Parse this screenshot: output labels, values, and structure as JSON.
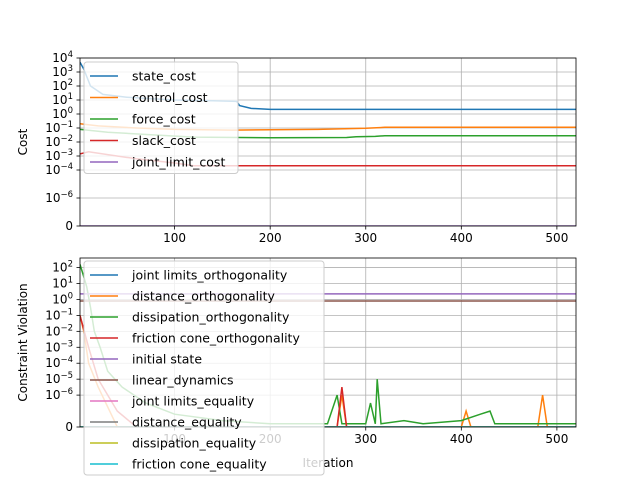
{
  "chart_data": [
    {
      "type": "line",
      "title": "",
      "xlabel": "",
      "ylabel": "Cost",
      "xlim": [
        1,
        520
      ],
      "ylim_log10": [
        -8,
        4
      ],
      "yscale": "symlog",
      "grid": true,
      "legend_position": "upper-left",
      "x_ticks": [
        100,
        200,
        300,
        400,
        500
      ],
      "x_tick_labels": [
        "100",
        "200",
        "300",
        "400",
        "500"
      ],
      "y_ticks": [
        4,
        3,
        2,
        1,
        0,
        -1,
        -2,
        -3,
        -4,
        -6,
        -8
      ],
      "y_tick_labels": [
        {
          "base": "10",
          "exp": "4"
        },
        {
          "base": "10",
          "exp": "3"
        },
        {
          "base": "10",
          "exp": "2"
        },
        {
          "base": "10",
          "exp": "1"
        },
        {
          "base": "10",
          "exp": "0"
        },
        {
          "base": "10",
          "exp": "−1"
        },
        {
          "base": "10",
          "exp": "−2"
        },
        {
          "base": "10",
          "exp": "−3"
        },
        {
          "base": "10",
          "exp": "−4"
        },
        {
          "base": "10",
          "exp": "−6"
        },
        {
          "base": "0",
          "exp": ""
        }
      ],
      "series": [
        {
          "name": "state_cost",
          "color": "#1f77b4",
          "points": [
            [
              1,
              3.7
            ],
            [
              5,
              3.2
            ],
            [
              12,
              2.0
            ],
            [
              25,
              1.4
            ],
            [
              50,
              1.2
            ],
            [
              100,
              1.0
            ],
            [
              140,
              0.95
            ],
            [
              165,
              0.9
            ],
            [
              168,
              0.6
            ],
            [
              180,
              0.4
            ],
            [
              200,
              0.33
            ],
            [
              300,
              0.33
            ],
            [
              520,
              0.33
            ]
          ]
        },
        {
          "name": "control_cost",
          "color": "#ff7f0e",
          "points": [
            [
              1,
              -0.7
            ],
            [
              20,
              -0.85
            ],
            [
              60,
              -1.0
            ],
            [
              100,
              -1.1
            ],
            [
              160,
              -1.15
            ],
            [
              250,
              -1.1
            ],
            [
              300,
              -1.02
            ],
            [
              320,
              -0.95
            ],
            [
              520,
              -0.95
            ]
          ]
        },
        {
          "name": "force_cost",
          "color": "#2ca02c",
          "points": [
            [
              1,
              -1.1
            ],
            [
              30,
              -1.3
            ],
            [
              80,
              -1.5
            ],
            [
              120,
              -1.65
            ],
            [
              200,
              -1.7
            ],
            [
              280,
              -1.68
            ],
            [
              290,
              -1.62
            ],
            [
              310,
              -1.6
            ],
            [
              320,
              -1.55
            ],
            [
              520,
              -1.55
            ]
          ]
        },
        {
          "name": "slack_cost",
          "color": "#d62728",
          "points": [
            [
              1,
              -2.85
            ],
            [
              10,
              -2.7
            ],
            [
              30,
              -2.9
            ],
            [
              60,
              -3.2
            ],
            [
              100,
              -3.5
            ],
            [
              120,
              -3.7
            ],
            [
              520,
              -3.7
            ]
          ]
        },
        {
          "name": "joint_limit_cost",
          "color": "#9467bd",
          "points": [
            [
              1,
              -8
            ],
            [
              520,
              -8
            ]
          ]
        }
      ]
    },
    {
      "type": "line",
      "title": "",
      "xlabel": "Iteration",
      "ylabel": "Constraint Violation",
      "xlim": [
        1,
        520
      ],
      "ylim_log10": [
        -8,
        2.6
      ],
      "yscale": "symlog",
      "grid": true,
      "legend_position": "upper-left",
      "x_ticks": [
        100,
        200,
        300,
        400,
        500
      ],
      "x_tick_labels": [
        "100",
        "200",
        "300",
        "400",
        "500"
      ],
      "y_ticks": [
        2,
        1,
        0,
        -1,
        -2,
        -3,
        -4,
        -5,
        -6,
        -8
      ],
      "y_tick_labels": [
        {
          "base": "10",
          "exp": "2"
        },
        {
          "base": "10",
          "exp": "1"
        },
        {
          "base": "10",
          "exp": "0"
        },
        {
          "base": "10",
          "exp": "−1"
        },
        {
          "base": "10",
          "exp": "−2"
        },
        {
          "base": "10",
          "exp": "−3"
        },
        {
          "base": "10",
          "exp": "−4"
        },
        {
          "base": "10",
          "exp": "−5"
        },
        {
          "base": "10",
          "exp": "−6"
        },
        {
          "base": "0",
          "exp": ""
        }
      ],
      "series": [
        {
          "name": "joint limits_orthogonality",
          "color": "#1f77b4",
          "points": [
            [
              1,
              -8
            ],
            [
              520,
              -8
            ]
          ]
        },
        {
          "name": "distance_orthogonality",
          "color": "#ff7f0e",
          "points": [
            [
              1,
              -1
            ],
            [
              5,
              -2
            ],
            [
              10,
              -4
            ],
            [
              20,
              -5.5
            ],
            [
              40,
              -8
            ],
            [
              270,
              -8
            ],
            [
              275,
              -6
            ],
            [
              280,
              -8
            ],
            [
              400,
              -8
            ],
            [
              405,
              -7
            ],
            [
              410,
              -8
            ],
            [
              480,
              -8
            ],
            [
              485,
              -6
            ],
            [
              490,
              -8
            ],
            [
              520,
              -8
            ]
          ]
        },
        {
          "name": "dissipation_orthogonality",
          "color": "#2ca02c",
          "points": [
            [
              1,
              2.2
            ],
            [
              4,
              1.6
            ],
            [
              8,
              0.8
            ],
            [
              12,
              -0.5
            ],
            [
              16,
              -2
            ],
            [
              22,
              -3
            ],
            [
              30,
              -4.5
            ],
            [
              45,
              -5.5
            ],
            [
              70,
              -6.5
            ],
            [
              100,
              -7.2
            ],
            [
              150,
              -7.6
            ],
            [
              200,
              -7.8
            ],
            [
              260,
              -7.8
            ],
            [
              270,
              -6
            ],
            [
              275,
              -7.8
            ],
            [
              300,
              -7.8
            ],
            [
              305,
              -6.5
            ],
            [
              310,
              -7.8
            ],
            [
              312,
              -5
            ],
            [
              316,
              -7.8
            ],
            [
              340,
              -7.6
            ],
            [
              360,
              -7.8
            ],
            [
              400,
              -7.6
            ],
            [
              420,
              -7.2
            ],
            [
              430,
              -7
            ],
            [
              435,
              -7.8
            ],
            [
              520,
              -7.8
            ]
          ]
        },
        {
          "name": "friction cone_orthogonality",
          "color": "#d62728",
          "points": [
            [
              1,
              -1
            ],
            [
              10,
              -3
            ],
            [
              20,
              -5
            ],
            [
              40,
              -7
            ],
            [
              60,
              -8
            ],
            [
              270,
              -8
            ],
            [
              275,
              -5.5
            ],
            [
              280,
              -8
            ],
            [
              520,
              -8
            ]
          ]
        },
        {
          "name": "initial state",
          "color": "#9467bd",
          "points": [
            [
              1,
              0.35
            ],
            [
              520,
              0.35
            ]
          ]
        },
        {
          "name": "linear_dynamics",
          "color": "#8c564b",
          "points": [
            [
              1,
              -0.1
            ],
            [
              520,
              -0.1
            ]
          ]
        },
        {
          "name": "joint limits_equality",
          "color": "#e377c2",
          "points": [
            [
              1,
              -8
            ],
            [
              520,
              -8
            ]
          ]
        },
        {
          "name": "distance_equality",
          "color": "#7f7f7f",
          "points": [
            [
              1,
              -8
            ],
            [
              520,
              -8
            ]
          ]
        },
        {
          "name": "dissipation_equality",
          "color": "#bcbd22",
          "points": [
            [
              1,
              -8
            ],
            [
              520,
              -8
            ]
          ]
        },
        {
          "name": "friction cone_equality",
          "color": "#17becf",
          "points": [
            [
              1,
              -8
            ],
            [
              520,
              -8
            ]
          ]
        }
      ]
    }
  ]
}
